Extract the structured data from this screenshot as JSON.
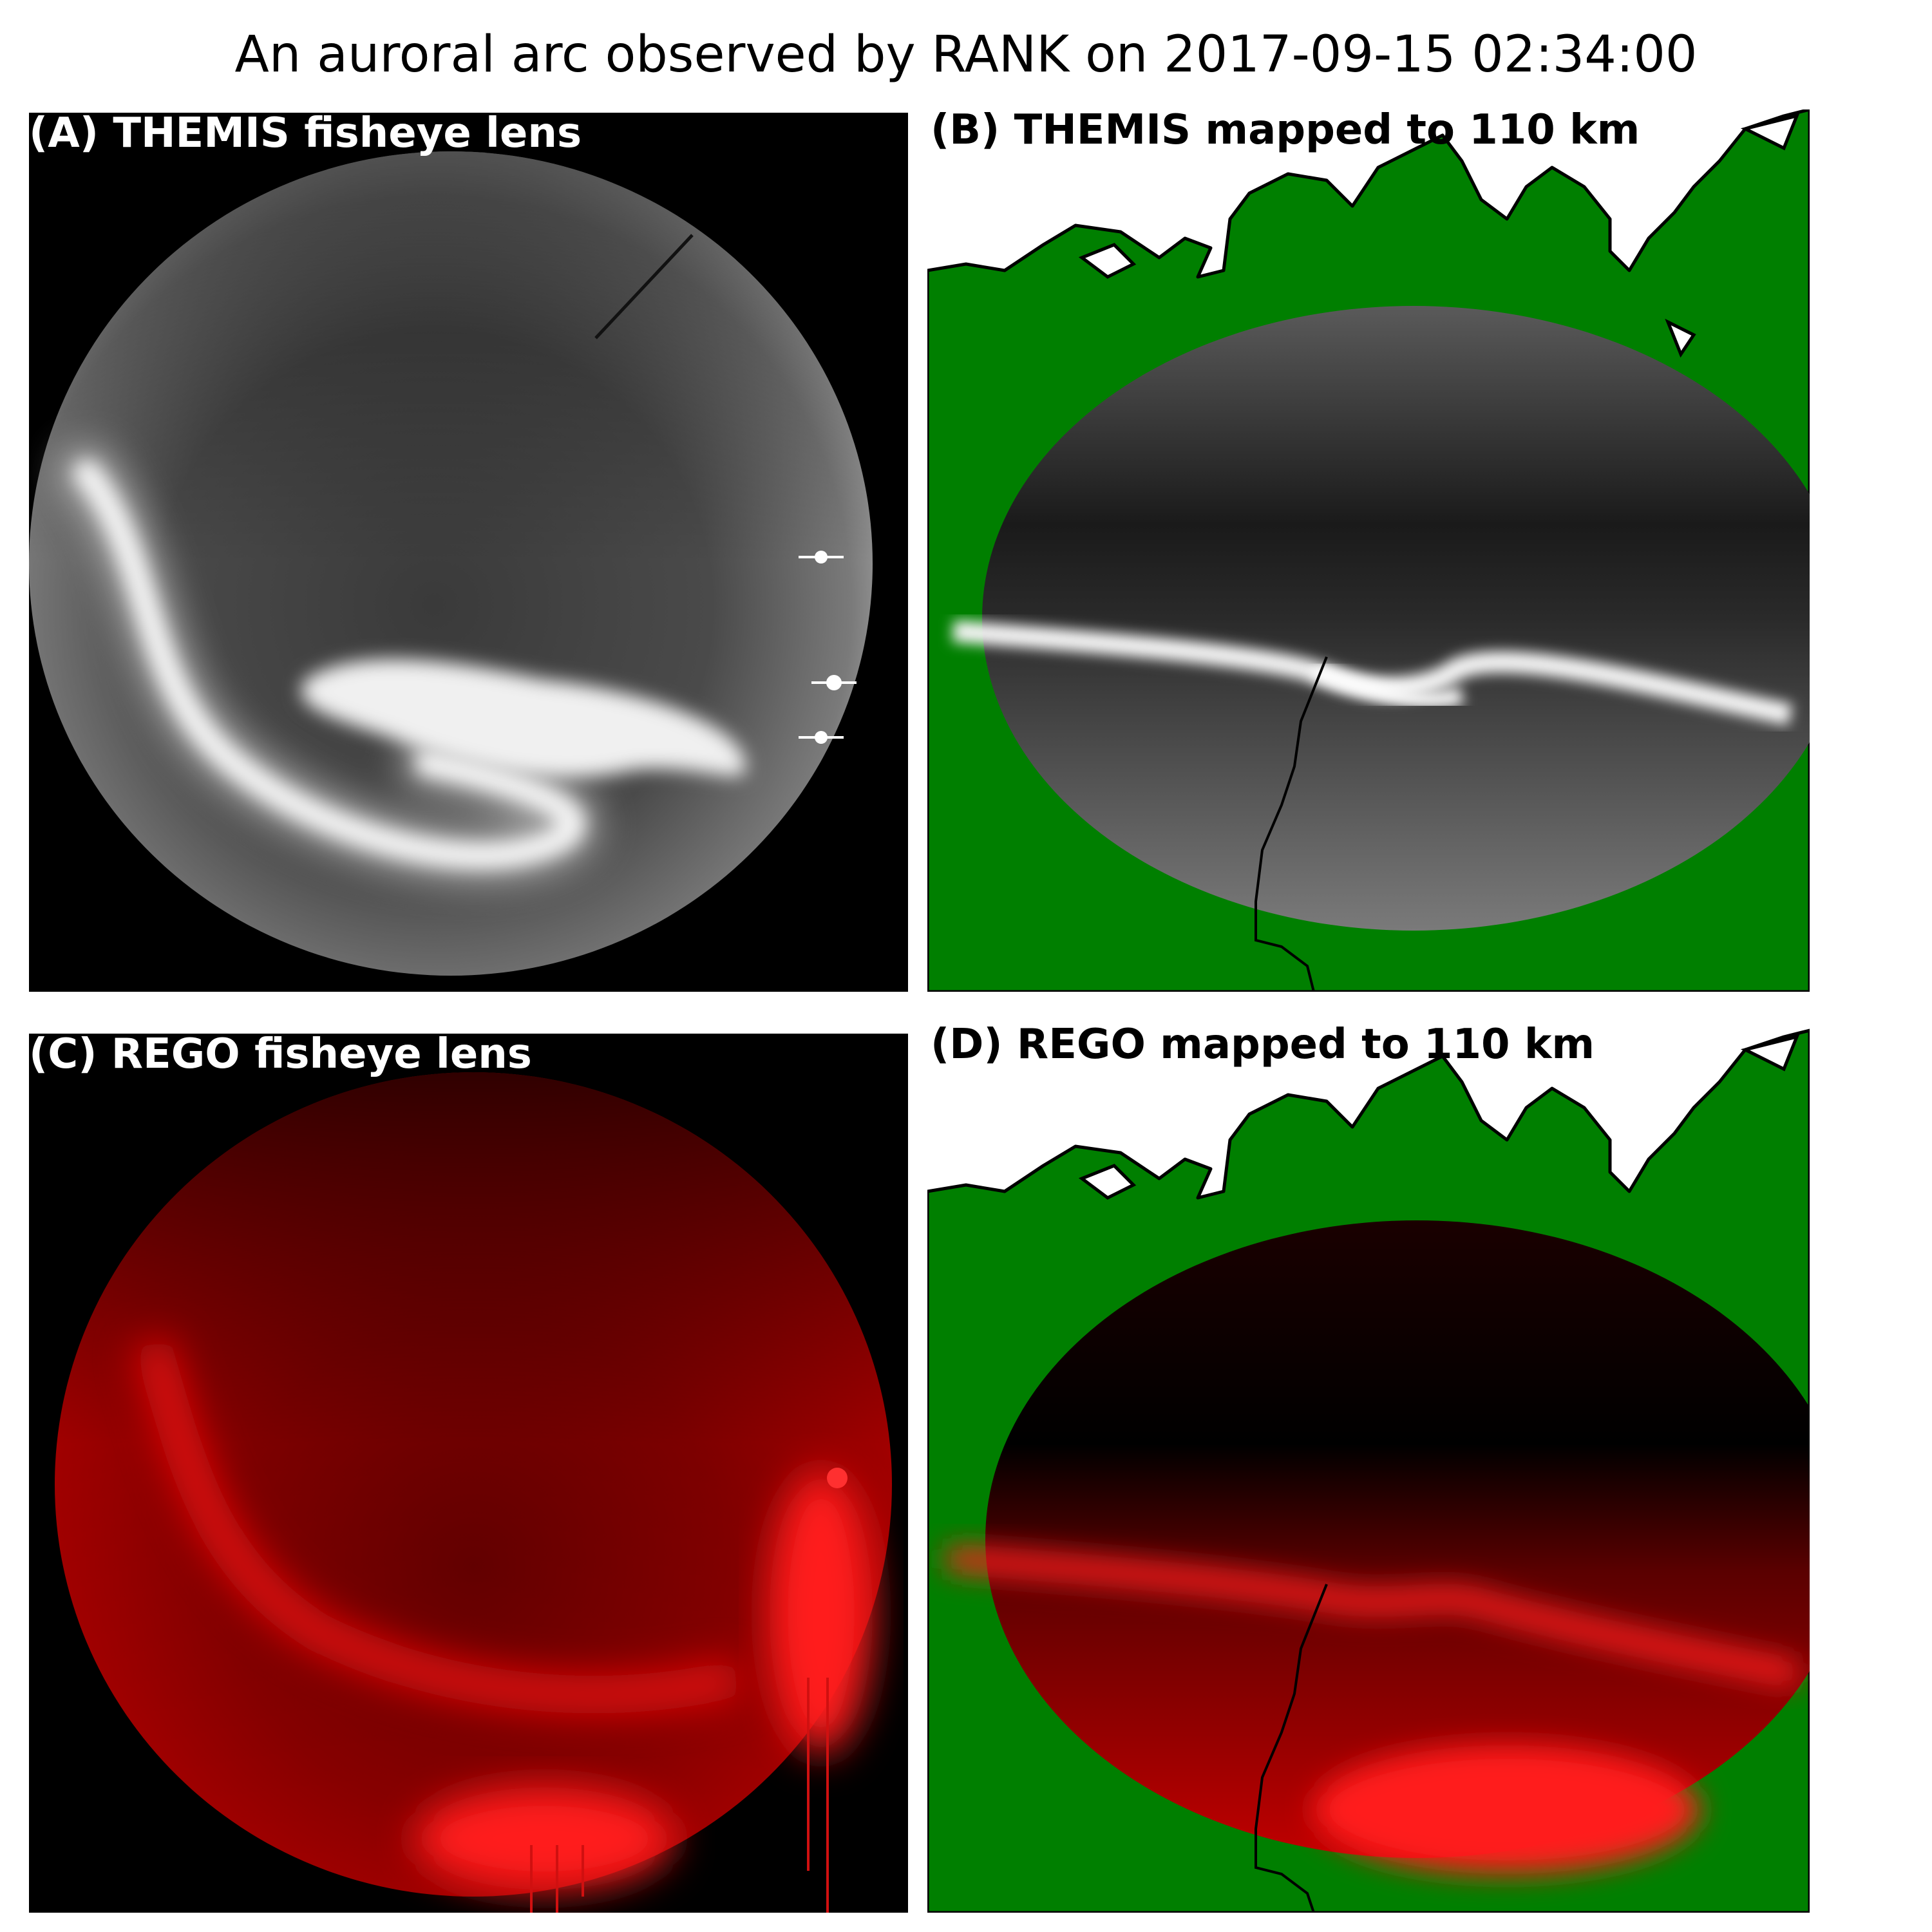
{
  "figure": {
    "title": "An auroral arc observed by RANK on 2017-09-15 02:34:00"
  },
  "panels": {
    "a": {
      "label": "(A) THEMIS fisheye lens"
    },
    "b": {
      "label": "(B) THEMIS mapped to 110 km"
    },
    "c": {
      "label": "(C) REGO fisheye lens"
    },
    "d": {
      "label": "(D) REGO mapped to 110 km"
    }
  },
  "colors": {
    "land": "#007f00",
    "water": "#ffffff",
    "coastline": "#000000",
    "themis_bright": "#ffffff",
    "rego_bright": "#ff1a1a"
  }
}
